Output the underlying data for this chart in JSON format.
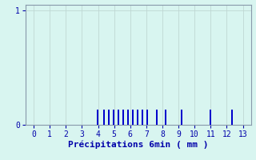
{
  "xlabel": "Précipitations 6min ( mm )",
  "xlim": [
    -0.5,
    13.5
  ],
  "ylim": [
    0,
    1.05
  ],
  "yticks": [
    0,
    1
  ],
  "xticks": [
    0,
    1,
    2,
    3,
    4,
    5,
    6,
    7,
    8,
    9,
    10,
    11,
    12,
    13
  ],
  "background_color": "#d8f5f0",
  "bar_color": "#0000cc",
  "grid_color": "#c0d8d4",
  "bar_positions": [
    3.95,
    4.35,
    4.65,
    4.95,
    5.25,
    5.55,
    5.85,
    6.15,
    6.45,
    6.75,
    7.05,
    7.65,
    8.2,
    9.2,
    11.0,
    12.35
  ],
  "bar_heights": [
    0.13,
    0.13,
    0.13,
    0.13,
    0.13,
    0.13,
    0.13,
    0.13,
    0.13,
    0.13,
    0.13,
    0.13,
    0.13,
    0.13,
    0.13,
    0.13
  ],
  "bar_width": 0.1,
  "tick_color": "#0000aa",
  "label_color": "#0000aa",
  "axis_color": "#8899aa",
  "tick_fontsize": 7,
  "xlabel_fontsize": 8
}
